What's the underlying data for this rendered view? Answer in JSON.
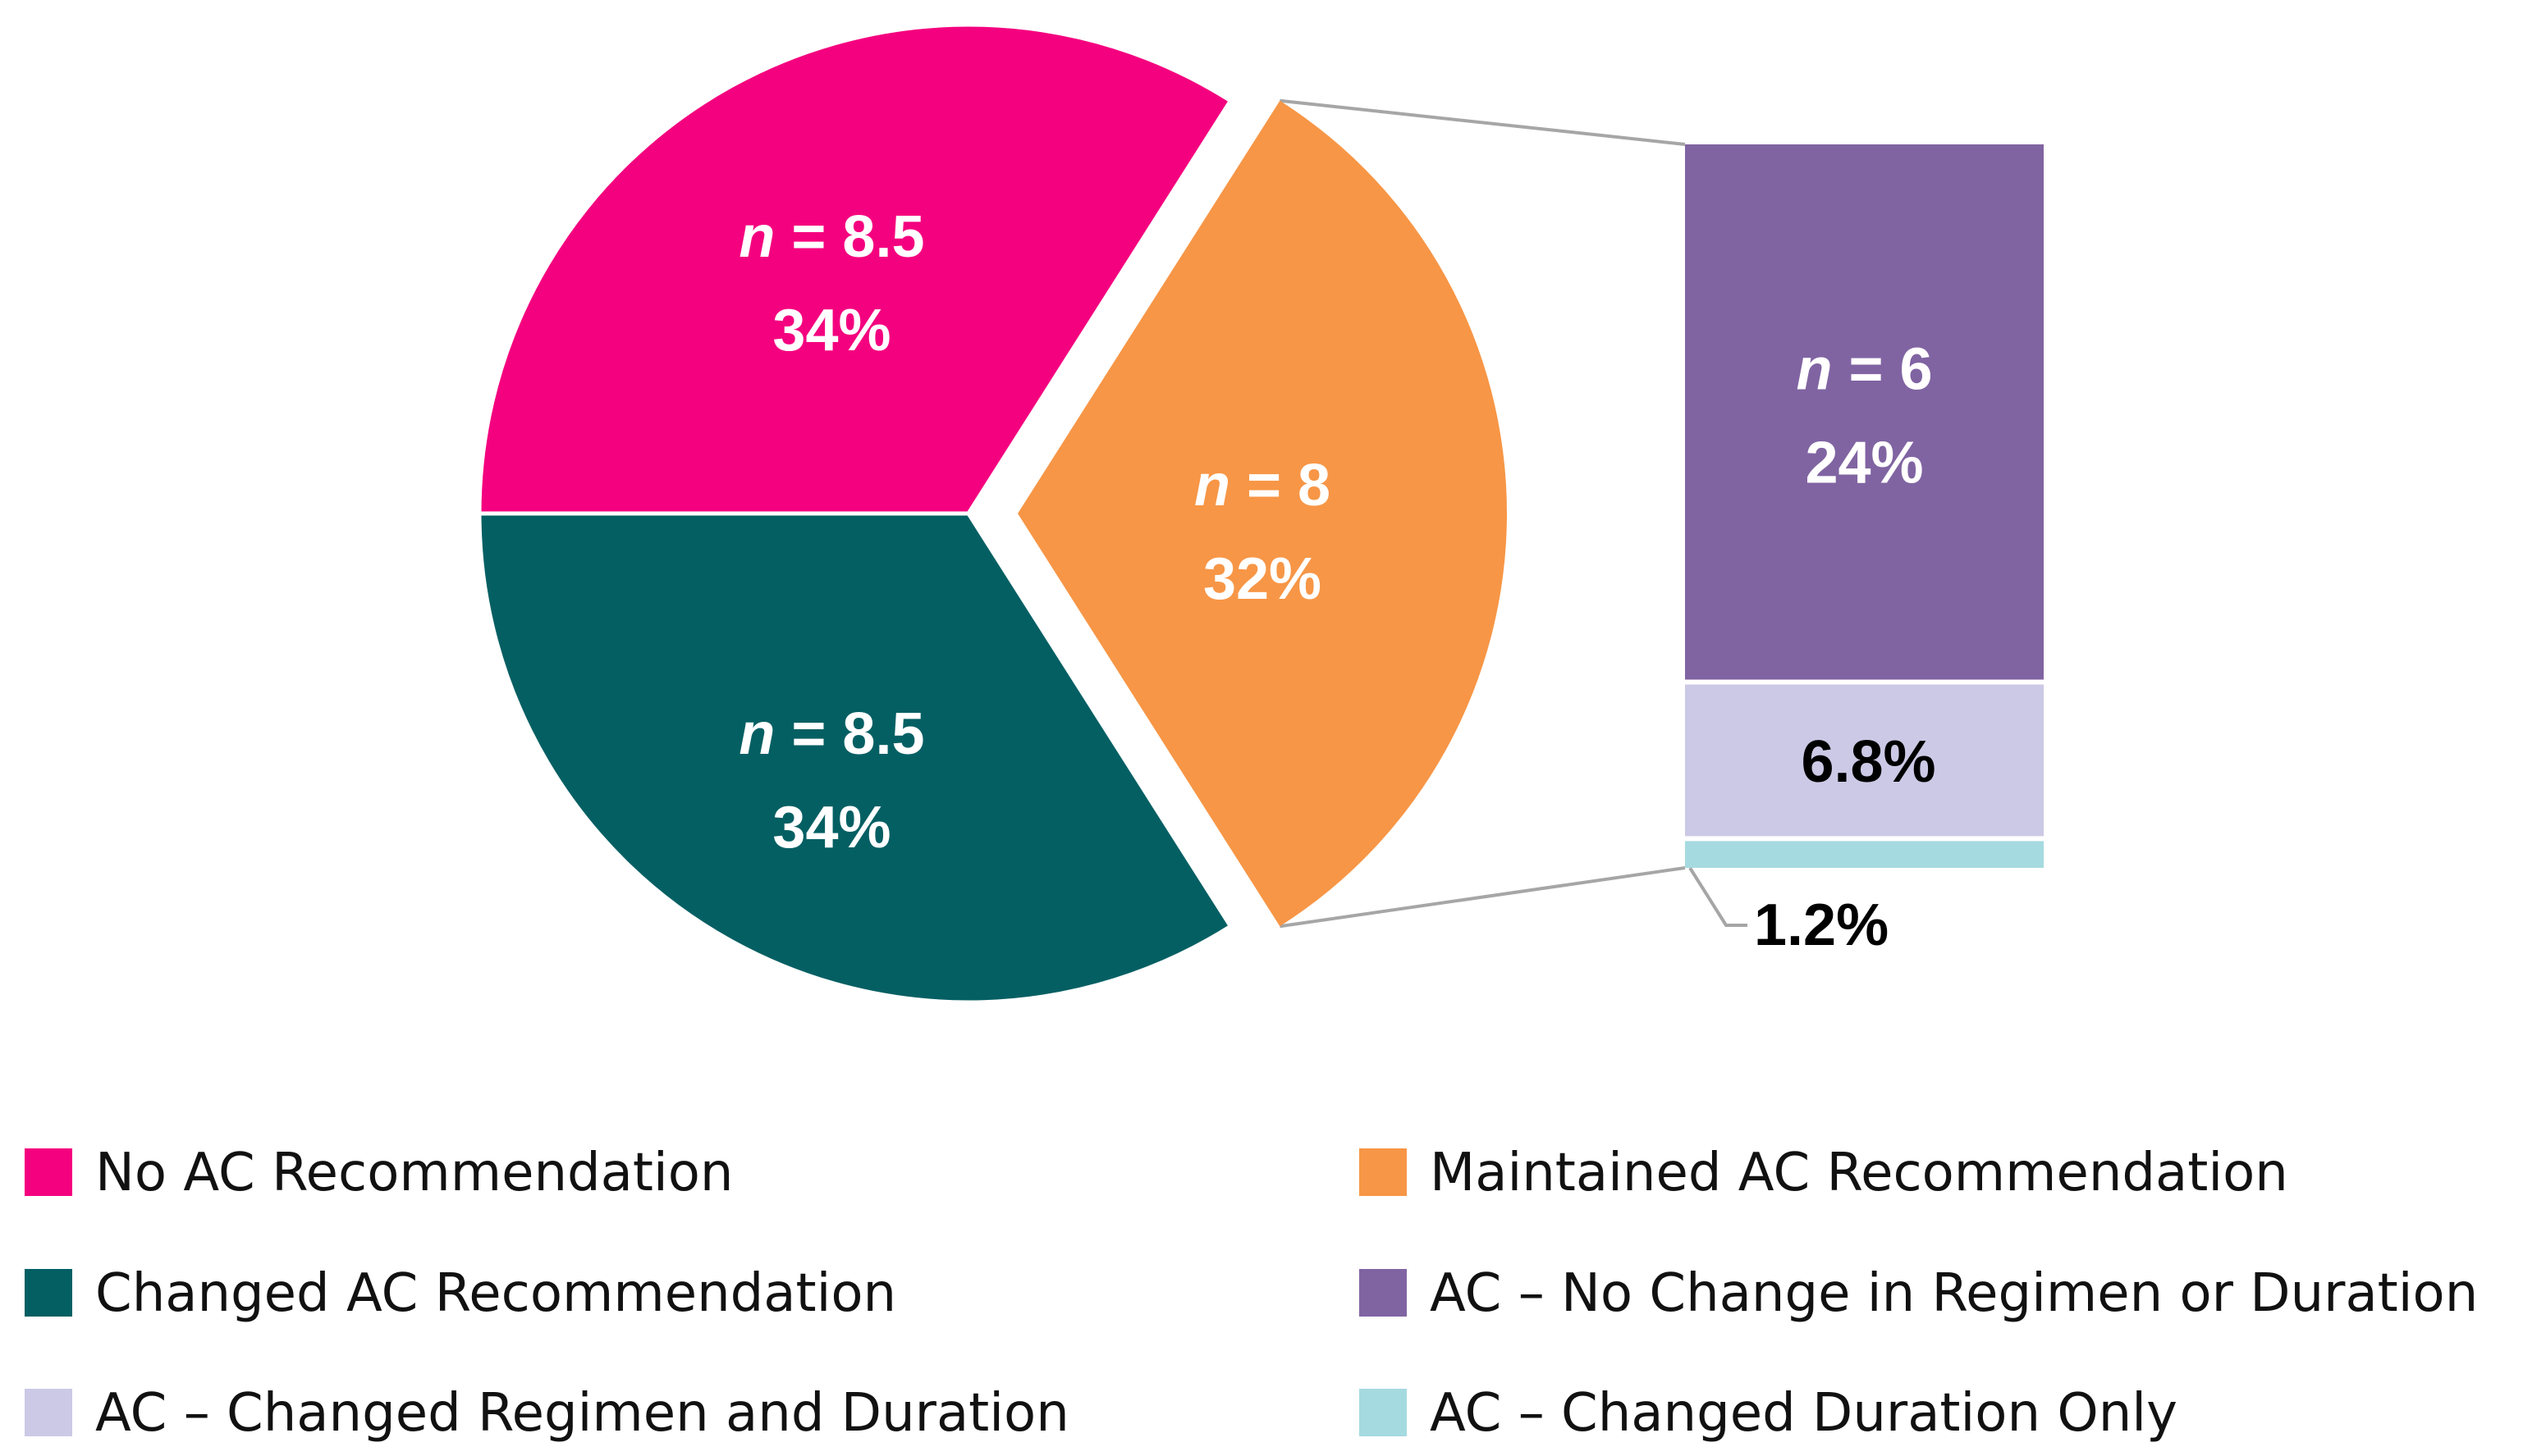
{
  "chart_data": {
    "type": "pie",
    "title": "",
    "slices": [
      {
        "key": "no_ac",
        "label": "No AC Recommendation",
        "n_label": "n = 8.5",
        "n": 8.5,
        "value": 34,
        "pct_label": "34%",
        "color": "#F4017F"
      },
      {
        "key": "maintained",
        "label": "Maintained AC Recommendation",
        "n_label": "n = 8",
        "n": 8,
        "value": 32,
        "pct_label": "32%",
        "color": "#F79646"
      },
      {
        "key": "changed",
        "label": "Changed AC Recommendation",
        "n_label": "n = 8.5",
        "n": 8.5,
        "value": 34,
        "pct_label": "34%",
        "color": "#045F63"
      }
    ],
    "breakdown_of": "Maintained AC Recommendation",
    "breakdown": [
      {
        "key": "no_change",
        "label": "AC – No Change in Regimen or Duration",
        "n_label": "n = 6",
        "n": 6,
        "value": 24,
        "pct_label": "24%",
        "color": "#8064A2"
      },
      {
        "key": "regimen_duration",
        "label": "AC – Changed Regimen and Duration",
        "value": 6.8,
        "pct_label": "6.8%",
        "color": "#CCC9E6"
      },
      {
        "key": "duration_only",
        "label": "AC – Changed Duration Only",
        "value": 1.2,
        "pct_label": "1.2%",
        "color": "#A5DAE0"
      }
    ],
    "legend": [
      {
        "label": "No AC Recommendation",
        "color": "#F4017F"
      },
      {
        "label": "Maintained AC Recommendation",
        "color": "#F79646"
      },
      {
        "label": "Changed AC Recommendation",
        "color": "#045F63"
      },
      {
        "label": "AC – No Change in Regimen or Duration",
        "color": "#8064A2"
      },
      {
        "label": "AC – Changed Regimen and Duration",
        "color": "#CCC9E6"
      },
      {
        "label": "AC – Changed Duration Only",
        "color": "#A5DAE0"
      }
    ],
    "legend_position": "bottom",
    "connector_color": "#A6A6A6"
  }
}
